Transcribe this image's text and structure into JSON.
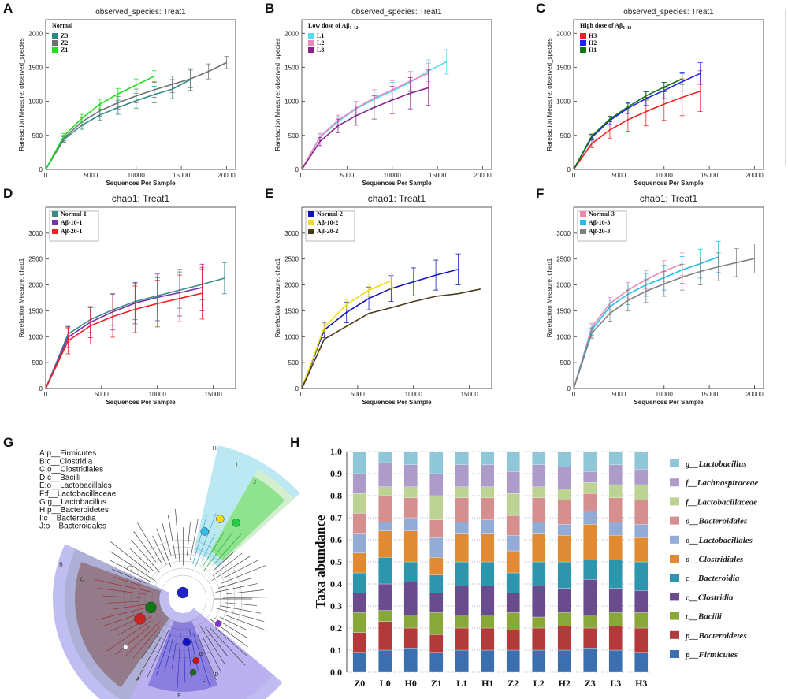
{
  "chart_data": [
    {
      "panel": "A",
      "type": "line",
      "title": "observed_species: Treat1",
      "xlabel": "Sequences Per Sample",
      "ylabel": "Rarefaction Measure: observed_species",
      "xlim": [
        0,
        21000
      ],
      "ylim": [
        0,
        2200
      ],
      "xticks": [
        "0",
        "5000",
        "10000",
        "15000",
        "20000"
      ],
      "yticks": [
        "0",
        "500",
        "1000",
        "1500",
        "2000"
      ],
      "legend_title": "Normal",
      "series": [
        {
          "name": "Z3",
          "color": "#2e8a8a",
          "x": [
            0,
            2000,
            4000,
            6000,
            8000,
            10000,
            12000,
            14000,
            16000
          ],
          "y": [
            0,
            440,
            650,
            800,
            910,
            1010,
            1100,
            1180,
            1320
          ],
          "err": [
            0,
            40,
            60,
            80,
            100,
            110,
            120,
            140,
            160
          ]
        },
        {
          "name": "Z2",
          "color": "#707070",
          "x": [
            0,
            2000,
            4000,
            6000,
            8000,
            10000,
            12000,
            14000,
            16000,
            18000,
            20000
          ],
          "y": [
            0,
            460,
            700,
            860,
            980,
            1080,
            1170,
            1250,
            1330,
            1440,
            1570
          ],
          "err": [
            0,
            40,
            60,
            80,
            90,
            100,
            110,
            120,
            130,
            110,
            90
          ]
        },
        {
          "name": "Z1",
          "color": "#22dd22",
          "x": [
            0,
            2000,
            4000,
            6000,
            8000,
            10000,
            12000
          ],
          "y": [
            0,
            490,
            750,
            960,
            1110,
            1240,
            1370
          ],
          "err": [
            0,
            40,
            60,
            70,
            80,
            90,
            80
          ]
        }
      ]
    },
    {
      "panel": "B",
      "type": "line",
      "title": "observed_species: Treat1",
      "xlabel": "Sequences Per Sample",
      "ylabel": "Rarefaction Measure: observed_species",
      "xlim": [
        0,
        21000
      ],
      "ylim": [
        0,
        2200
      ],
      "xticks": [
        "0",
        "5000",
        "10000",
        "15000",
        "20000"
      ],
      "yticks": [
        "0",
        "500",
        "1000",
        "1500",
        "2000"
      ],
      "legend_title": "Low dose of Aβ",
      "legend_subscript": "1-42",
      "series": [
        {
          "name": "L1",
          "color": "#55ddee",
          "x": [
            0,
            2000,
            4000,
            6000,
            8000,
            10000,
            12000,
            14000,
            16000
          ],
          "y": [
            0,
            470,
            700,
            890,
            1030,
            1150,
            1280,
            1450,
            1580
          ],
          "err": [
            0,
            50,
            80,
            100,
            120,
            130,
            140,
            160,
            180
          ]
        },
        {
          "name": "L2",
          "color": "#ee88bb",
          "x": [
            0,
            2000,
            4000,
            6000,
            8000,
            10000,
            12000,
            14000
          ],
          "y": [
            0,
            480,
            720,
            900,
            1050,
            1170,
            1300,
            1410
          ],
          "err": [
            0,
            50,
            80,
            100,
            120,
            130,
            140,
            150
          ]
        },
        {
          "name": "L3",
          "color": "#882288",
          "x": [
            0,
            2000,
            4000,
            6000,
            8000,
            10000,
            12000,
            14000
          ],
          "y": [
            0,
            410,
            640,
            790,
            910,
            1020,
            1120,
            1200
          ],
          "err": [
            0,
            60,
            100,
            140,
            170,
            200,
            230,
            260
          ]
        }
      ]
    },
    {
      "panel": "C",
      "type": "line",
      "title": "observed_species: Treat1",
      "xlabel": "Sequences Per Sample",
      "ylabel": "Rarefaction Measure: observed_species",
      "xlim": [
        0,
        21000
      ],
      "ylim": [
        0,
        2200
      ],
      "xticks": [
        "0",
        "5000",
        "10000",
        "15000",
        "20000"
      ],
      "yticks": [
        "0",
        "500",
        "1000",
        "1500",
        "2000"
      ],
      "legend_title": "High dose of Aβ",
      "legend_subscript": "1-42",
      "series": [
        {
          "name": "H3",
          "color": "#ee2222",
          "x": [
            0,
            2000,
            4000,
            6000,
            8000,
            10000,
            12000,
            14000
          ],
          "y": [
            0,
            380,
            580,
            730,
            850,
            960,
            1060,
            1150
          ],
          "err": [
            0,
            60,
            120,
            170,
            210,
            240,
            270,
            300
          ]
        },
        {
          "name": "H2",
          "color": "#2222ee",
          "x": [
            0,
            2000,
            4000,
            6000,
            8000,
            10000,
            12000,
            14000
          ],
          "y": [
            0,
            470,
            720,
            900,
            1040,
            1160,
            1290,
            1410
          ],
          "err": [
            0,
            40,
            60,
            80,
            100,
            120,
            140,
            160
          ]
        },
        {
          "name": "H1",
          "color": "#117711",
          "x": [
            0,
            2000,
            4000,
            6000,
            8000,
            10000,
            12000
          ],
          "y": [
            0,
            490,
            740,
            920,
            1080,
            1210,
            1330
          ],
          "err": [
            0,
            30,
            40,
            50,
            60,
            70,
            80
          ]
        }
      ]
    },
    {
      "panel": "D",
      "type": "line",
      "title": "chao1: Treat1",
      "xlabel": "Sequences Per Sample",
      "ylabel": "Rarefaction Measure: chao1",
      "xlim": [
        0,
        17000
      ],
      "ylim": [
        0,
        3500
      ],
      "xticks": [
        "0",
        "5000",
        "10000",
        "15000"
      ],
      "yticks": [
        "0",
        "500",
        "1000",
        "1500",
        "2000",
        "2500",
        "3000"
      ],
      "legend_title": "",
      "series": [
        {
          "name": "Normal-1",
          "color": "#3a8a8a",
          "x": [
            0,
            2000,
            4000,
            6000,
            8000,
            10000,
            12000,
            14000,
            16000
          ],
          "y": [
            0,
            1050,
            1330,
            1520,
            1680,
            1790,
            1900,
            2010,
            2130
          ],
          "err": [
            0,
            150,
            250,
            300,
            350,
            350,
            350,
            300,
            300
          ]
        },
        {
          "name": "Aβ-10-1",
          "color": "#7733aa",
          "x": [
            0,
            2000,
            4000,
            6000,
            8000,
            10000,
            12000,
            14000
          ],
          "y": [
            0,
            990,
            1280,
            1480,
            1650,
            1760,
            1850,
            1950
          ],
          "err": [
            0,
            200,
            300,
            350,
            400,
            450,
            450,
            450
          ]
        },
        {
          "name": "Aβ-20-1",
          "color": "#ee2222",
          "x": [
            0,
            2000,
            4000,
            6000,
            8000,
            10000,
            12000,
            14000
          ],
          "y": [
            0,
            920,
            1210,
            1390,
            1530,
            1640,
            1740,
            1840
          ],
          "err": [
            0,
            250,
            350,
            400,
            450,
            450,
            450,
            500
          ]
        }
      ]
    },
    {
      "panel": "E",
      "type": "line",
      "title": "chao1: Treat1",
      "xlabel": "Sequences Per Sample",
      "ylabel": "Rarefaction Measure: chao1",
      "xlim": [
        0,
        17000
      ],
      "ylim": [
        0,
        3500
      ],
      "xticks": [
        "0",
        "5000",
        "10000",
        "15000"
      ],
      "yticks": [
        "0",
        "500",
        "1000",
        "1500",
        "2000",
        "2500",
        "3000"
      ],
      "legend_title": "",
      "series": [
        {
          "name": "Normal-2",
          "color": "#1111bb",
          "x": [
            0,
            2000,
            4000,
            6000,
            8000,
            10000,
            12000,
            14000
          ],
          "y": [
            0,
            1130,
            1470,
            1740,
            1930,
            2060,
            2190,
            2300
          ],
          "err": [
            0,
            150,
            200,
            220,
            250,
            270,
            290,
            300
          ]
        },
        {
          "name": "Aβ-10-2",
          "color": "#eedd11",
          "x": [
            0,
            2000,
            4000,
            6000,
            8000
          ],
          "y": [
            0,
            1180,
            1620,
            1900,
            2080
          ],
          "err": [
            0,
            80,
            100,
            120,
            150
          ]
        },
        {
          "name": "Aβ-20-2",
          "color": "#4a3a1a",
          "x": [
            0,
            2000,
            4000,
            6000,
            8000,
            10000,
            12000,
            14000,
            16000
          ],
          "y": [
            0,
            950,
            1200,
            1450,
            1560,
            1680,
            1780,
            1830,
            1920
          ],
          "err": [
            0,
            0,
            0,
            0,
            0,
            0,
            0,
            0,
            0
          ]
        }
      ]
    },
    {
      "panel": "F",
      "type": "line",
      "title": "chao1: Treat1",
      "xlabel": "Sequences Per Sample",
      "ylabel": "Rarefaction Measure: chao1",
      "xlim": [
        0,
        21000
      ],
      "ylim": [
        0,
        3500
      ],
      "xticks": [
        "0",
        "5000",
        "10000",
        "15000",
        "20000"
      ],
      "yticks": [
        "0",
        "500",
        "1000",
        "1500",
        "2000",
        "2500",
        "3000"
      ],
      "legend_title": "",
      "series": [
        {
          "name": "Normal-3",
          "color": "#ee88aa",
          "x": [
            0,
            2000,
            4000,
            6000,
            8000,
            10000,
            12000
          ],
          "y": [
            0,
            1180,
            1640,
            1900,
            2100,
            2270,
            2400
          ],
          "err": [
            0,
            80,
            120,
            150,
            180,
            200,
            220
          ]
        },
        {
          "name": "Aβ-10-3",
          "color": "#22bbee",
          "x": [
            0,
            2000,
            4000,
            6000,
            8000,
            10000,
            12000,
            14000,
            16000
          ],
          "y": [
            0,
            1130,
            1580,
            1820,
            2000,
            2140,
            2290,
            2410,
            2540
          ],
          "err": [
            0,
            100,
            150,
            200,
            220,
            240,
            260,
            280,
            300
          ]
        },
        {
          "name": "Aβ-20-3",
          "color": "#808080",
          "x": [
            0,
            2000,
            4000,
            6000,
            8000,
            10000,
            12000,
            14000,
            16000,
            18000,
            20000
          ],
          "y": [
            0,
            1070,
            1450,
            1700,
            1880,
            2020,
            2150,
            2260,
            2350,
            2430,
            2510
          ],
          "err": [
            0,
            100,
            150,
            200,
            220,
            240,
            250,
            260,
            270,
            270,
            280
          ]
        }
      ]
    },
    {
      "panel": "H",
      "type": "bar",
      "stacked": true,
      "ylabel": "Taxa abundance",
      "ylim": [
        0,
        1.0
      ],
      "yticks": [
        "0.0",
        "0.1",
        "0.2",
        "0.3",
        "0.4",
        "0.5",
        "0.6",
        "0.7",
        "0.8",
        "0.9",
        "1.0"
      ],
      "categories": [
        "Z0",
        "L0",
        "H0",
        "Z1",
        "L1",
        "H1",
        "Z2",
        "L2",
        "H2",
        "Z3",
        "L3",
        "H3"
      ],
      "series": [
        {
          "name": "p__Firmicutes",
          "color": "#3b6fb0",
          "values": [
            0.09,
            0.1,
            0.11,
            0.09,
            0.1,
            0.1,
            0.1,
            0.1,
            0.1,
            0.11,
            0.1,
            0.09
          ]
        },
        {
          "name": "p__Bacteroidetes",
          "color": "#b33a3a",
          "values": [
            0.09,
            0.13,
            0.09,
            0.08,
            0.1,
            0.1,
            0.09,
            0.1,
            0.11,
            0.09,
            0.11,
            0.11
          ]
        },
        {
          "name": "c__Bacilli",
          "color": "#88a83a",
          "values": [
            0.09,
            0.05,
            0.06,
            0.1,
            0.06,
            0.06,
            0.08,
            0.05,
            0.06,
            0.06,
            0.06,
            0.07
          ]
        },
        {
          "name": "c__Clostridia",
          "color": "#6a4c8e",
          "values": [
            0.09,
            0.12,
            0.15,
            0.09,
            0.13,
            0.13,
            0.09,
            0.14,
            0.11,
            0.16,
            0.11,
            0.1
          ]
        },
        {
          "name": "c__Bacteroidia",
          "color": "#2e96ac",
          "values": [
            0.09,
            0.12,
            0.09,
            0.08,
            0.11,
            0.11,
            0.09,
            0.11,
            0.12,
            0.09,
            0.13,
            0.13
          ]
        },
        {
          "name": "o__Clostridiales",
          "color": "#e08a33",
          "values": [
            0.09,
            0.12,
            0.14,
            0.08,
            0.13,
            0.13,
            0.1,
            0.13,
            0.12,
            0.16,
            0.11,
            0.11
          ]
        },
        {
          "name": "o__Lactobacillales",
          "color": "#93acd6",
          "values": [
            0.09,
            0.04,
            0.06,
            0.09,
            0.05,
            0.06,
            0.07,
            0.05,
            0.05,
            0.06,
            0.06,
            0.06
          ]
        },
        {
          "name": "o__Bacteroidales",
          "color": "#d68f8f",
          "values": [
            0.09,
            0.12,
            0.09,
            0.08,
            0.11,
            0.1,
            0.09,
            0.11,
            0.11,
            0.08,
            0.11,
            0.11
          ]
        },
        {
          "name": "f__Lactobacillaceae",
          "color": "#bdd393",
          "values": [
            0.09,
            0.04,
            0.05,
            0.11,
            0.05,
            0.05,
            0.1,
            0.05,
            0.05,
            0.05,
            0.06,
            0.07
          ]
        },
        {
          "name": "f__Lachnospiraceae",
          "color": "#ad9bc9",
          "values": [
            0.09,
            0.11,
            0.1,
            0.1,
            0.1,
            0.1,
            0.1,
            0.1,
            0.1,
            0.05,
            0.09,
            0.07
          ]
        },
        {
          "name": "g__Lactobacillus",
          "color": "#8fc6d8",
          "values": [
            0.1,
            0.05,
            0.06,
            0.1,
            0.06,
            0.06,
            0.09,
            0.06,
            0.07,
            0.09,
            0.06,
            0.08
          ]
        }
      ]
    }
  ],
  "panel_g": {
    "letter": "G",
    "key": [
      "A:p__Firmicutes",
      "B:c__Clostridia",
      "C:o__Clostridiales",
      "D:c__Bacilli",
      "E:o__Lactobacillales",
      "F:f__Lactobacillaceae",
      "G:g__Lactobacillus",
      "H:p__Bacteroidetes",
      "I:c__Bacteroidia",
      "J:o__Bacteroidales"
    ],
    "sector_labels": [
      "A",
      "B",
      "C",
      "D",
      "E",
      "F",
      "G",
      "H",
      "I",
      "J"
    ],
    "colors": {
      "firmicutes": "#8d86e6",
      "clostridia": "#9fa4c0",
      "clostridiales": "#8a6a70",
      "bacilli": "#b8a8f0",
      "lactobacillales": "#7a6fd8",
      "bacteroidetes": "#a6e0ef",
      "bacteroidia": "#d7f0c8",
      "bacteroidales": "#7ee07e"
    }
  },
  "panel_h_letter": "H"
}
